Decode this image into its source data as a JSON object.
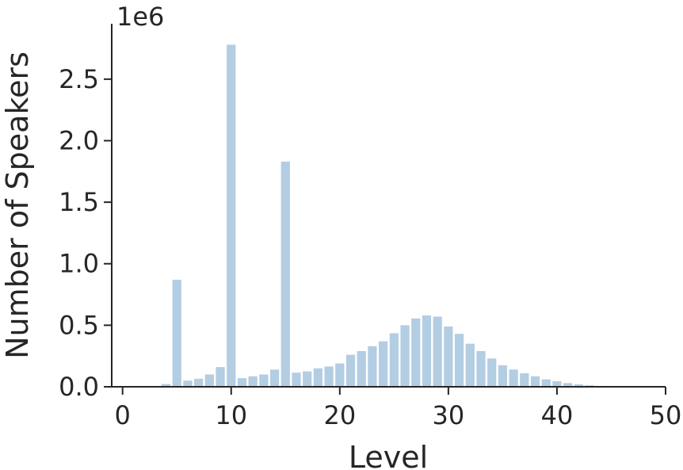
{
  "chart_data": {
    "type": "bar",
    "title": "",
    "xlabel": "Level",
    "ylabel": "Number of Speakers",
    "y_multiplier_label": "1e6",
    "xlim": [
      -1,
      50
    ],
    "ylim": [
      0,
      2.95
    ],
    "xticks": [
      0,
      10,
      20,
      30,
      40,
      50
    ],
    "xtick_labels": [
      "0",
      "10",
      "20",
      "30",
      "40",
      "50"
    ],
    "yticks": [
      0.0,
      0.5,
      1.0,
      1.5,
      2.0,
      2.5
    ],
    "ytick_labels": [
      "0.0",
      "0.5",
      "1.0",
      "1.5",
      "2.0",
      "2.5"
    ],
    "grid": false,
    "bar_color": "#b3cde3",
    "x": [
      1,
      2,
      3,
      4,
      5,
      6,
      7,
      8,
      9,
      10,
      11,
      12,
      13,
      14,
      15,
      16,
      17,
      18,
      19,
      20,
      21,
      22,
      23,
      24,
      25,
      26,
      27,
      28,
      29,
      30,
      31,
      32,
      33,
      34,
      35,
      36,
      37,
      38,
      39,
      40,
      41,
      42,
      43,
      44,
      45,
      46,
      47,
      48,
      49,
      50
    ],
    "values": [
      0.0,
      0.0,
      0.003,
      0.022,
      0.87,
      0.05,
      0.065,
      0.1,
      0.16,
      2.78,
      0.07,
      0.085,
      0.1,
      0.14,
      1.83,
      0.115,
      0.125,
      0.15,
      0.165,
      0.19,
      0.26,
      0.29,
      0.33,
      0.37,
      0.435,
      0.5,
      0.555,
      0.58,
      0.57,
      0.49,
      0.43,
      0.35,
      0.29,
      0.23,
      0.175,
      0.14,
      0.11,
      0.085,
      0.06,
      0.045,
      0.03,
      0.02,
      0.012,
      0.007,
      0.004,
      0.002,
      0.001,
      0.0,
      0.0,
      0.0
    ]
  }
}
